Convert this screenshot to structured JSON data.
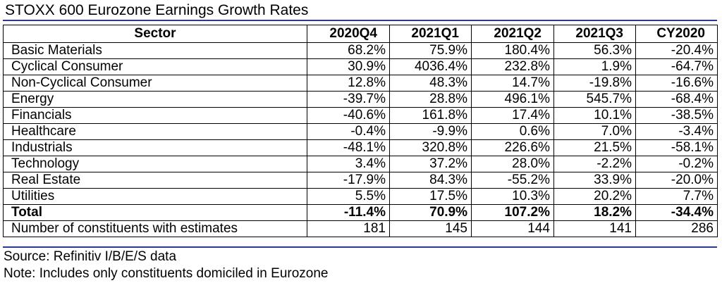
{
  "title": "STOXX 600 Eurozone Earnings Growth Rates",
  "columns": [
    "Sector",
    "2020Q4",
    "2021Q1",
    "2021Q2",
    "2021Q3",
    "CY2020"
  ],
  "rows": [
    {
      "sector": "Basic Materials",
      "values": [
        "68.2%",
        "75.9%",
        "180.4%",
        "56.3%",
        "-20.4%"
      ]
    },
    {
      "sector": "Cyclical Consumer",
      "values": [
        "30.9%",
        "4036.4%",
        "232.8%",
        "1.9%",
        "-64.7%"
      ]
    },
    {
      "sector": "Non-Cyclical Consumer",
      "values": [
        "12.8%",
        "48.3%",
        "14.7%",
        "-19.8%",
        "-16.6%"
      ]
    },
    {
      "sector": "Energy",
      "values": [
        "-39.7%",
        "28.8%",
        "496.1%",
        "545.7%",
        "-68.4%"
      ]
    },
    {
      "sector": "Financials",
      "values": [
        "-40.6%",
        "161.8%",
        "17.4%",
        "10.1%",
        "-38.5%"
      ]
    },
    {
      "sector": "Healthcare",
      "values": [
        "-0.4%",
        "-9.9%",
        "0.6%",
        "7.0%",
        "-3.4%"
      ]
    },
    {
      "sector": "Industrials",
      "values": [
        "-48.1%",
        "320.8%",
        "226.6%",
        "21.5%",
        "-58.1%"
      ]
    },
    {
      "sector": "Technology",
      "values": [
        "3.4%",
        "37.2%",
        "28.0%",
        "-2.2%",
        "-0.2%"
      ]
    },
    {
      "sector": "Real Estate",
      "values": [
        "-17.9%",
        "84.3%",
        "-55.2%",
        "33.9%",
        "-20.0%"
      ]
    },
    {
      "sector": "Utilities",
      "values": [
        "5.5%",
        "17.5%",
        "10.3%",
        "20.2%",
        "7.7%"
      ]
    }
  ],
  "total": {
    "sector": "Total",
    "values": [
      "-11.4%",
      "70.9%",
      "107.2%",
      "18.2%",
      "-34.4%"
    ]
  },
  "constituents": {
    "sector": "Number of constituents with estimates",
    "values": [
      "181",
      "145",
      "144",
      "141",
      "286"
    ]
  },
  "source": "Source: Refinitiv I/B/E/S data",
  "note": "Note: Includes only constituents domiciled in Eurozone",
  "colors": {
    "rule": "#2b3a8f",
    "text": "#000000",
    "background": "#ffffff"
  }
}
